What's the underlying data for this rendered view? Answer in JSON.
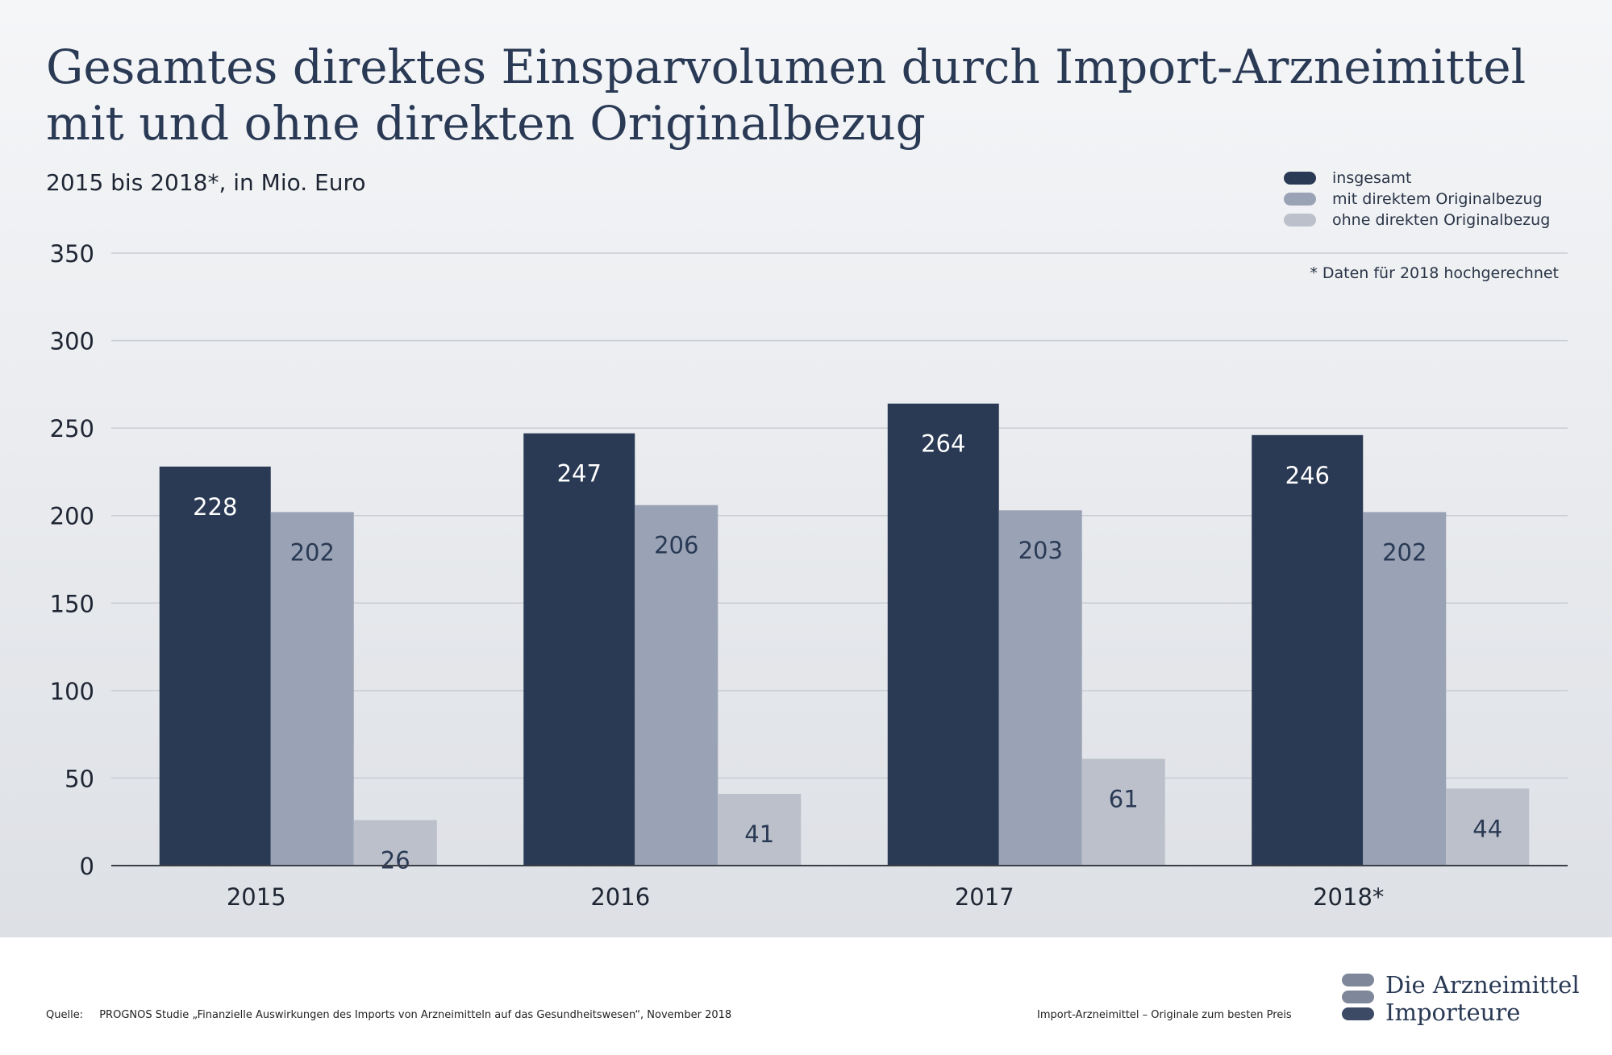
{
  "header": {
    "title_line1": "Gesamtes direktes Einsparvolumen durch  Import-Arzneimittel",
    "title_line2": "mit und ohne direkten Originalbezug",
    "subtitle": "2015 bis 2018*, in Mio. Euro",
    "note": "* Daten für 2018 hochgerechnet"
  },
  "colors": {
    "insgesamt": "#2a3a55",
    "mit": "#9aa3b5",
    "ohne": "#bcc0ca",
    "grid": "#c9cdd4",
    "axis": "#3a3f48"
  },
  "chart_data": {
    "type": "bar",
    "categories": [
      "2015",
      "2016",
      "2017",
      "2018*"
    ],
    "series": [
      {
        "name": "insgesamt",
        "values": [
          228,
          247,
          264,
          246
        ]
      },
      {
        "name": "mit direktem Originalbezug",
        "values": [
          202,
          206,
          203,
          202
        ]
      },
      {
        "name": "ohne direkten Originalbezug",
        "values": [
          26,
          41,
          61,
          44
        ]
      }
    ],
    "title": "Gesamtes direktes Einsparvolumen durch  Import-Arzneimittel mit und ohne direkten Originalbezug",
    "subtitle": "2015 bis 2018*, in Mio. Euro",
    "xlabel": "",
    "ylabel": "",
    "ylim": [
      0,
      350
    ],
    "yticks": [
      0,
      50,
      100,
      150,
      200,
      250,
      300,
      350
    ],
    "grid": true,
    "legend_position": "top-right"
  },
  "footer": {
    "source_label": "Quelle:",
    "source_text": "PROGNOS Studie „Finanzielle Auswirkungen des Imports von Arzneimitteln auf das Gesundheitswesen“, November 2018",
    "claim": "Import-Arzneimittel – Originale zum besten Preis",
    "logo_line1": "Die Arzneimittel",
    "logo_line2": "Importeure"
  }
}
